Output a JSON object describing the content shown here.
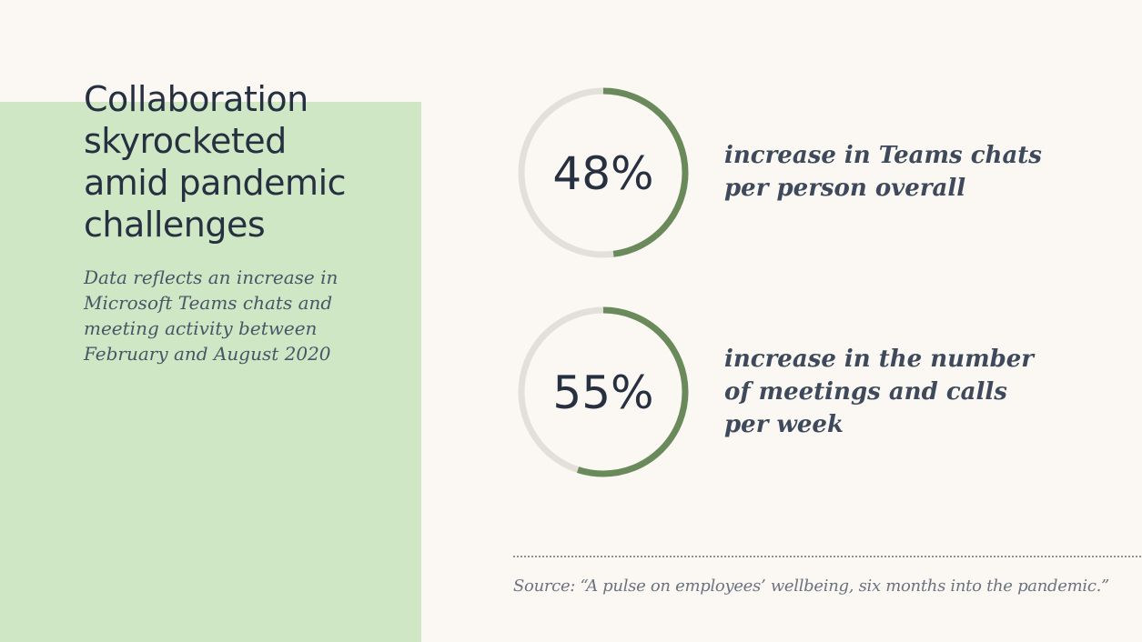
{
  "title": "Collaboration skyrocketed amid pandemic challenges",
  "subtitle": "Data reflects an increase in Microsoft Teams chats and meeting activity between February and August 2020",
  "source": "Source: “A pulse on employees’ wellbeing, six months into the pandemic.”",
  "colors": {
    "accent": "#6a8a5c",
    "track": "#e3e0da",
    "panel": "#d0e7c5",
    "text": "#263040"
  },
  "chart_data": {
    "type": "donut",
    "items": [
      {
        "value": 48,
        "display": "48%",
        "label": "increase in Teams chats per person overall"
      },
      {
        "value": 55,
        "display": "55%",
        "label": "increase in the number of meetings and calls per week"
      }
    ]
  }
}
